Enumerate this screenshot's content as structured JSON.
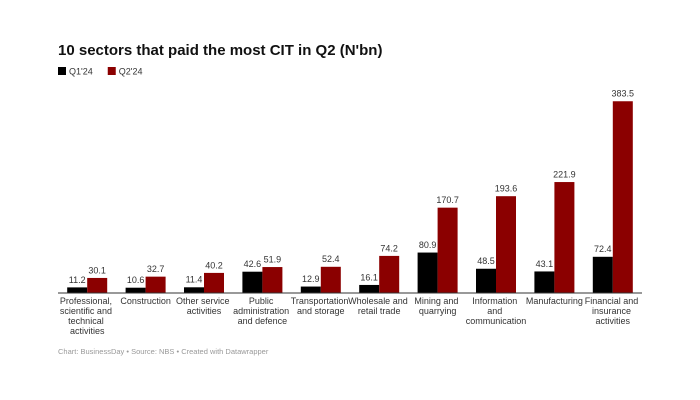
{
  "chart_data": {
    "type": "bar",
    "title": "10 sectors that paid the most CIT in Q2 (N'bn)",
    "source": "Chart: BusinessDay • Source: NBS • Created with Datawrapper",
    "categories": [
      "Professional, scientific and technical activities",
      "Construction",
      "Other service activities",
      "Public administration and defence",
      "Transportation and storage",
      "Wholesale and retail trade",
      "Mining and quarrying",
      "Information and communication",
      "Manufacturing",
      "Financial and insurance activities"
    ],
    "series": [
      {
        "name": "Q1'24",
        "color": "#000000",
        "values": [
          11.2,
          10.6,
          11.4,
          42.6,
          12.9,
          16.1,
          80.9,
          48.5,
          43.1,
          72.4
        ]
      },
      {
        "name": "Q2'24",
        "color": "#8b0000",
        "values": [
          30.1,
          32.7,
          40.2,
          51.9,
          52.4,
          74.2,
          170.7,
          193.6,
          221.9,
          383.5
        ]
      }
    ],
    "ylim": [
      0,
      400
    ]
  }
}
